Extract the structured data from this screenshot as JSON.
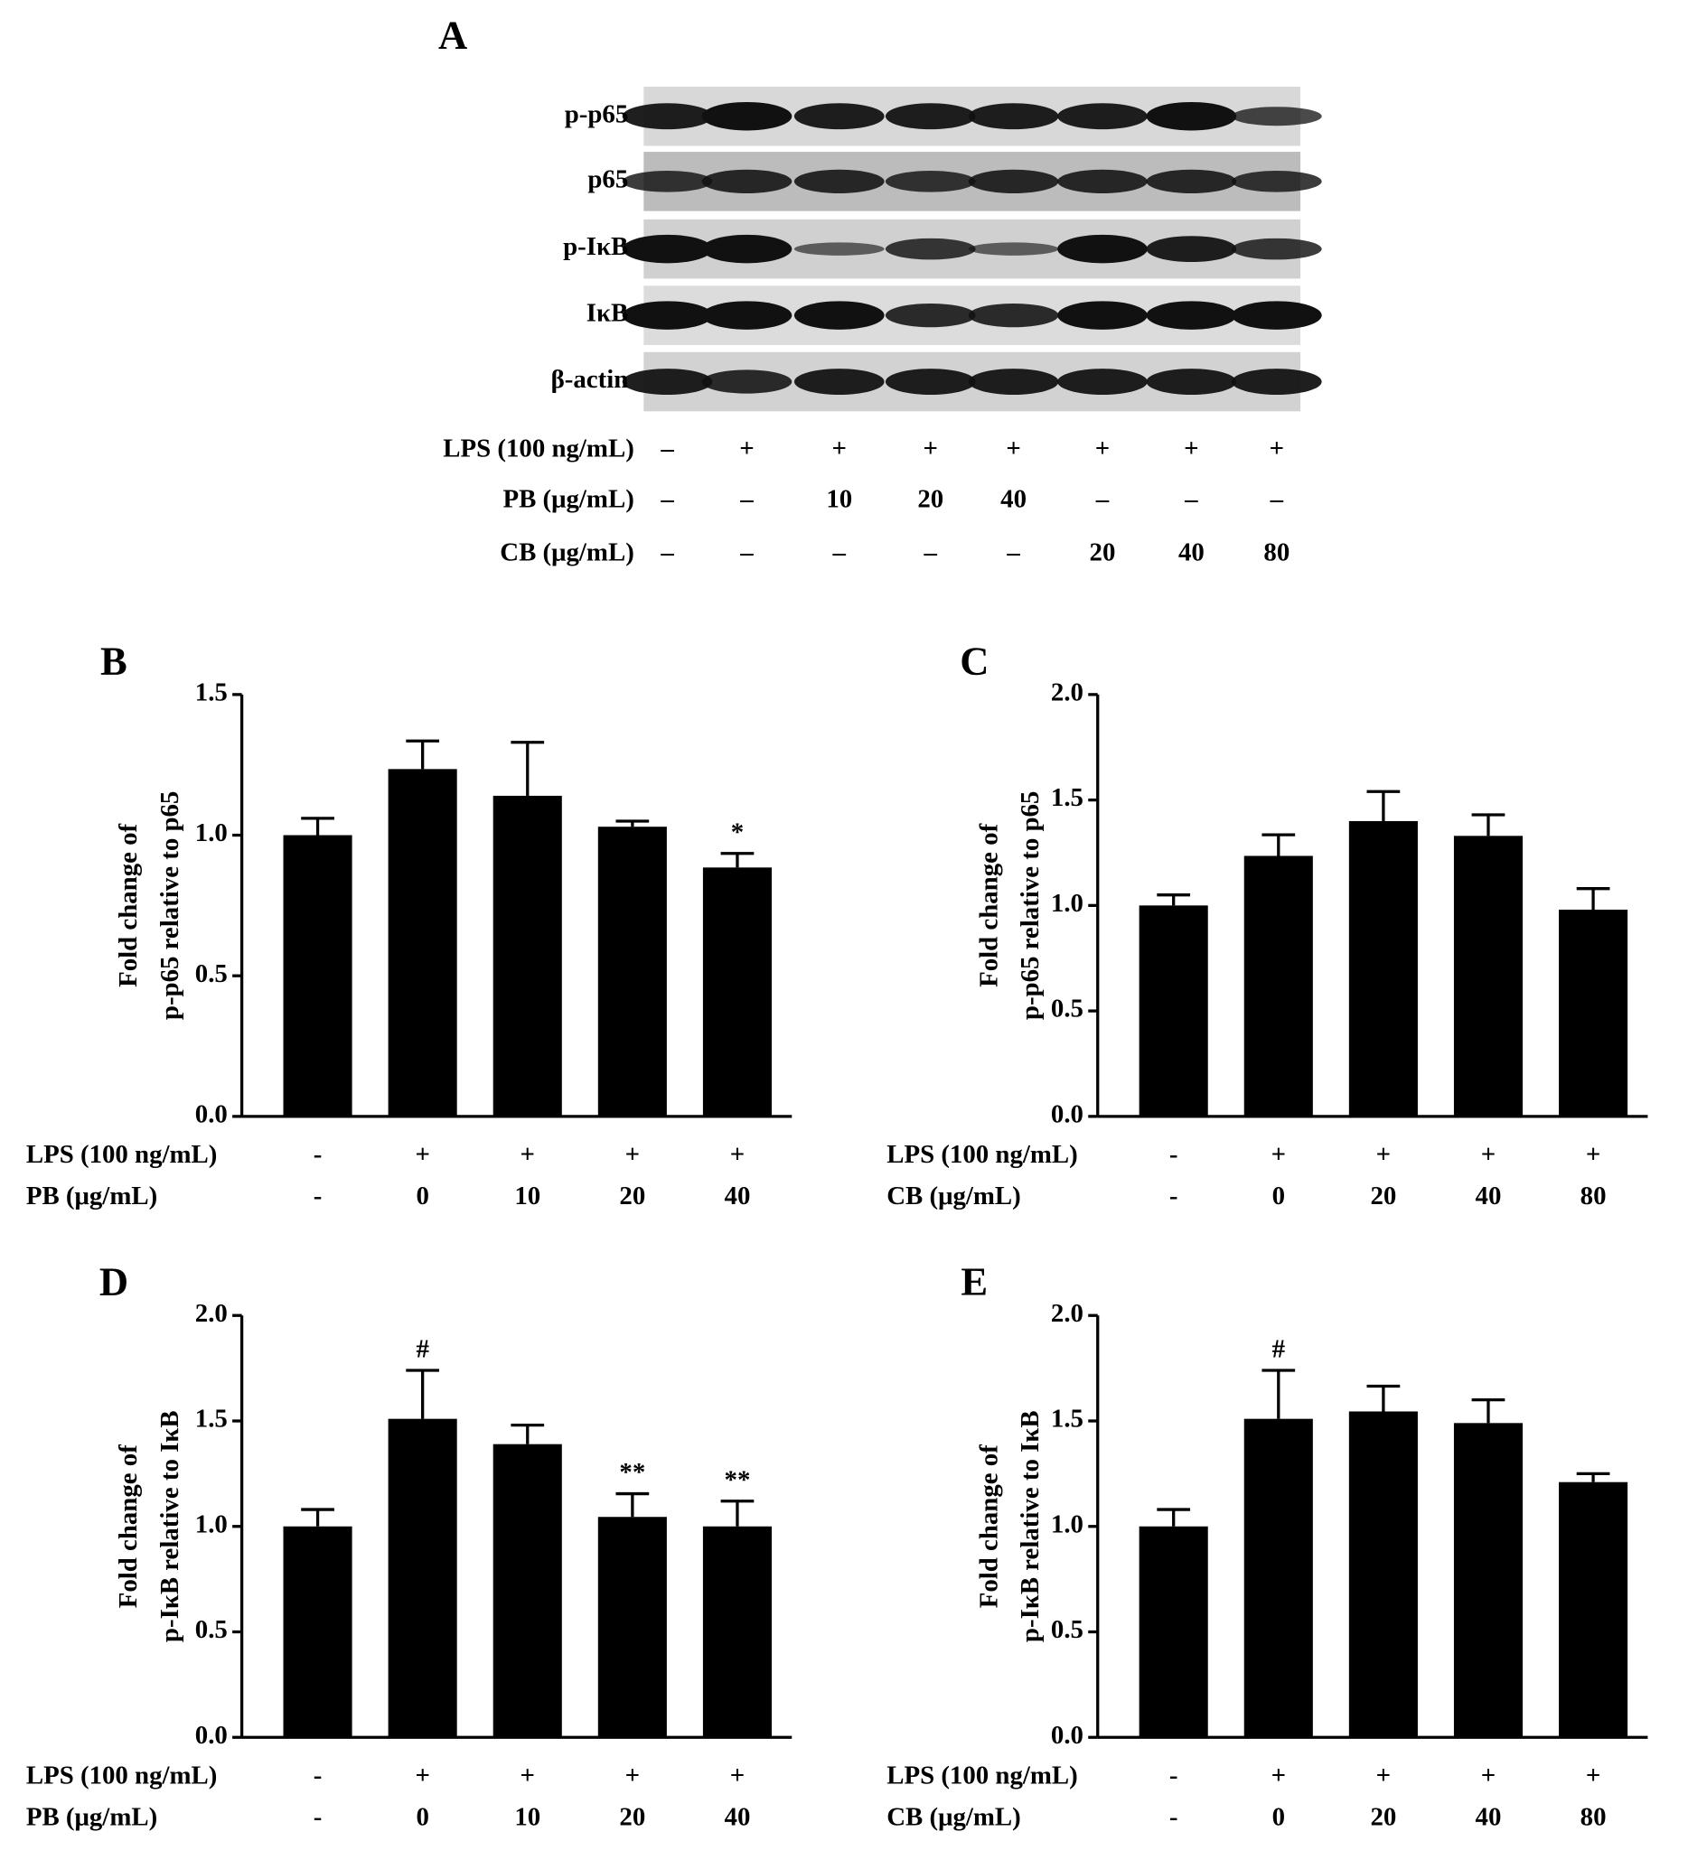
{
  "blot": {
    "panel_label": "A",
    "bands": [
      "p-p65",
      "p65",
      "p-IκB",
      "IκB",
      "β-actin"
    ],
    "treatments": [
      {
        "label": "LPS (100 ng/mL)",
        "values": [
          "–",
          "+",
          "+",
          "+",
          "+",
          "+",
          "+",
          "+"
        ]
      },
      {
        "label": "PB (μg/mL)",
        "values": [
          "–",
          "–",
          "10",
          "20",
          "40",
          "–",
          "–",
          "–"
        ]
      },
      {
        "label": "CB (μg/mL)",
        "values": [
          "–",
          "–",
          "–",
          "–",
          "–",
          "20",
          "40",
          "80"
        ]
      }
    ]
  },
  "chart_data": [
    {
      "type": "bar",
      "panel_label": "B",
      "ylabel": [
        "Fold change of",
        "p-p65 relative to p65"
      ],
      "color": "#000000",
      "category_rows": [
        {
          "label": "LPS (100 ng/mL)",
          "values": [
            "-",
            "+",
            "+",
            "+",
            "+"
          ]
        },
        {
          "label": "PB (μg/mL)",
          "values": [
            "-",
            "0",
            "10",
            "20",
            "40"
          ]
        }
      ],
      "values": [
        1.0,
        1.235,
        1.14,
        1.03,
        0.885
      ],
      "errors": [
        0.06,
        0.1,
        0.19,
        0.02,
        0.05
      ],
      "annotations": [
        null,
        null,
        null,
        null,
        "*"
      ],
      "ylim": [
        0,
        1.5
      ],
      "yticks": [
        {
          "value": 0,
          "label": "0.0"
        },
        {
          "value": 0.5,
          "label": "0.5"
        },
        {
          "value": 1,
          "label": "1.0"
        },
        {
          "value": 1.5,
          "label": "1.5"
        }
      ]
    },
    {
      "type": "bar",
      "panel_label": "C",
      "ylabel": [
        "Fold change of",
        "p-p65 relative to p65"
      ],
      "color": "#000000",
      "category_rows": [
        {
          "label": "LPS (100 ng/mL)",
          "values": [
            "-",
            "+",
            "+",
            "+",
            "+"
          ]
        },
        {
          "label": "CB (μg/mL)",
          "values": [
            "-",
            "0",
            "20",
            "40",
            "80"
          ]
        }
      ],
      "values": [
        1.0,
        1.235,
        1.4,
        1.33,
        0.98
      ],
      "errors": [
        0.05,
        0.1,
        0.14,
        0.1,
        0.1
      ],
      "annotations": [
        null,
        null,
        null,
        null,
        null
      ],
      "ylim": [
        0,
        2
      ],
      "yticks": [
        {
          "value": 0,
          "label": "0.0"
        },
        {
          "value": 0.5,
          "label": "0.5"
        },
        {
          "value": 1,
          "label": "1.0"
        },
        {
          "value": 1.5,
          "label": "1.5"
        },
        {
          "value": 2,
          "label": "2.0"
        }
      ]
    },
    {
      "type": "bar",
      "panel_label": "D",
      "ylabel": [
        "Fold change of",
        "p-IκB relative to IκB"
      ],
      "color": "#000000",
      "category_rows": [
        {
          "label": "LPS (100 ng/mL)",
          "values": [
            "-",
            "+",
            "+",
            "+",
            "+"
          ]
        },
        {
          "label": "PB (μg/mL)",
          "values": [
            "-",
            "0",
            "10",
            "20",
            "40"
          ]
        }
      ],
      "values": [
        1.0,
        1.51,
        1.39,
        1.045,
        1.0
      ],
      "errors": [
        0.08,
        0.23,
        0.09,
        0.11,
        0.12
      ],
      "annotations": [
        null,
        "#",
        null,
        "**",
        "**"
      ],
      "ylim": [
        0,
        2
      ],
      "yticks": [
        {
          "value": 0,
          "label": "0.0"
        },
        {
          "value": 0.5,
          "label": "0.5"
        },
        {
          "value": 1,
          "label": "1.0"
        },
        {
          "value": 1.5,
          "label": "1.5"
        },
        {
          "value": 2,
          "label": "2.0"
        }
      ]
    },
    {
      "type": "bar",
      "panel_label": "E",
      "ylabel": [
        "Fold change of",
        "p-IκB relative to IκB"
      ],
      "color": "#000000",
      "category_rows": [
        {
          "label": "LPS (100 ng/mL)",
          "values": [
            "-",
            "+",
            "+",
            "+",
            "+"
          ]
        },
        {
          "label": "CB (μg/mL)",
          "values": [
            "-",
            "0",
            "20",
            "40",
            "80"
          ]
        }
      ],
      "values": [
        1.0,
        1.51,
        1.545,
        1.49,
        1.21
      ],
      "errors": [
        0.08,
        0.23,
        0.12,
        0.11,
        0.04
      ],
      "annotations": [
        null,
        "#",
        null,
        null,
        null
      ],
      "ylim": [
        0,
        2
      ],
      "yticks": [
        {
          "value": 0,
          "label": "0.0"
        },
        {
          "value": 0.5,
          "label": "0.5"
        },
        {
          "value": 1,
          "label": "1.0"
        },
        {
          "value": 1.5,
          "label": "1.5"
        },
        {
          "value": 2,
          "label": "2.0"
        }
      ]
    }
  ]
}
